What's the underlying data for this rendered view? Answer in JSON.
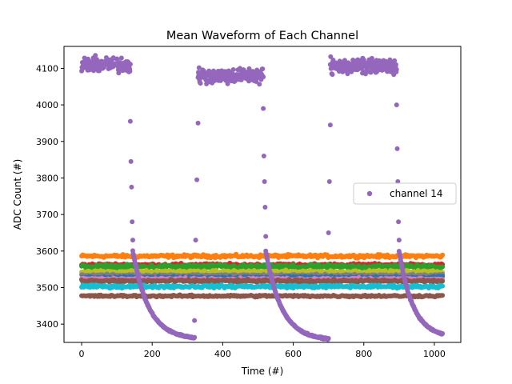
{
  "chart_data": {
    "type": "scatter",
    "title": "Mean Waveform of Each Channel",
    "xlabel": "Time (#)",
    "ylabel": "ADC Count (#)",
    "xlim": [
      -50,
      1075
    ],
    "ylim": [
      3350,
      4160
    ],
    "xticks": [
      0,
      200,
      400,
      600,
      800,
      1000
    ],
    "yticks": [
      3400,
      3500,
      3600,
      3700,
      3800,
      3900,
      4000,
      4100
    ],
    "grid": false,
    "legend": {
      "position": "right",
      "entries": [
        "channel 14"
      ]
    },
    "flat_series": [
      {
        "color": "#ff7f0e",
        "level": 3586,
        "spread": 6
      },
      {
        "color": "#d62728",
        "level": 3562,
        "spread": 6
      },
      {
        "color": "#2ca02c",
        "level": 3557,
        "spread": 8
      },
      {
        "color": "#bcbd22",
        "level": 3543,
        "spread": 6
      },
      {
        "color": "#7f7f7f",
        "level": 3533,
        "spread": 5
      },
      {
        "color": "#1f77b4",
        "level": 3527,
        "spread": 5
      },
      {
        "color": "#e377c2",
        "level": 3523,
        "spread": 5
      },
      {
        "color": "#8c564b",
        "level": 3518,
        "spread": 6
      },
      {
        "color": "#17becf",
        "level": 3503,
        "spread": 6
      },
      {
        "color": "#8c564b",
        "level": 3477,
        "spread": 4
      }
    ],
    "series": [
      {
        "name": "channel 14",
        "color": "#9467bd",
        "segments": [
          {
            "kind": "high",
            "from": 0,
            "to": 138,
            "level": 4110,
            "spread": 30
          },
          {
            "kind": "drop",
            "from": 138,
            "to": 145,
            "values": [
              3955,
              3845,
              3775,
              3680,
              3630
            ]
          },
          {
            "kind": "decay",
            "from": 145,
            "to": 320,
            "start": 3600,
            "end": 3358,
            "tau": 45
          },
          {
            "kind": "rise",
            "from": 320,
            "to": 330,
            "values": [
              3410,
              3630,
              3795,
              3950
            ]
          },
          {
            "kind": "high",
            "from": 330,
            "to": 515,
            "level": 4080,
            "spread": 30
          },
          {
            "kind": "drop",
            "from": 515,
            "to": 522,
            "values": [
              3990,
              3860,
              3790,
              3720,
              3640
            ]
          },
          {
            "kind": "decay",
            "from": 522,
            "to": 700,
            "start": 3600,
            "end": 3355,
            "tau": 45
          },
          {
            "kind": "rise",
            "from": 700,
            "to": 705,
            "values": [
              3650,
              3790,
              3945
            ]
          },
          {
            "kind": "high",
            "from": 705,
            "to": 893,
            "level": 4105,
            "spread": 30
          },
          {
            "kind": "drop",
            "from": 893,
            "to": 900,
            "values": [
              4000,
              3880,
              3790,
              3680,
              3630
            ]
          },
          {
            "kind": "decay",
            "from": 900,
            "to": 1023,
            "start": 3600,
            "end": 3362,
            "tau": 40
          }
        ]
      }
    ]
  }
}
